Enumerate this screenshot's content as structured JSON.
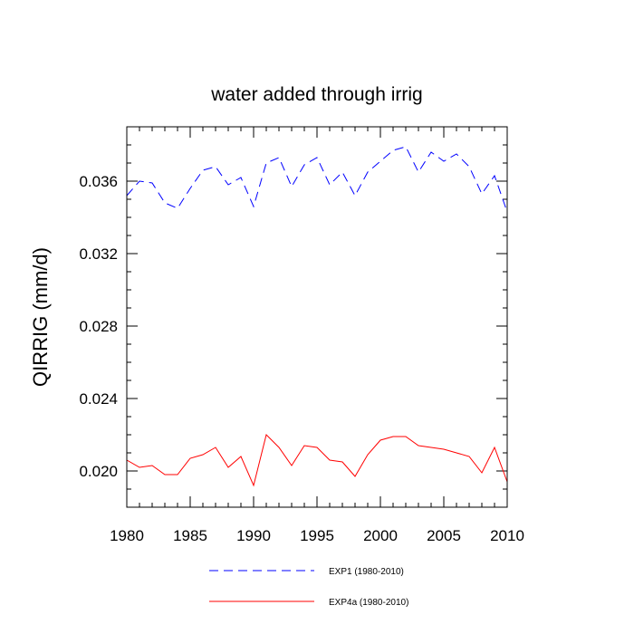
{
  "chart_data": {
    "type": "line",
    "title": "water added through irrig",
    "xlabel": "",
    "ylabel": "QIRRIG  (mm/d)",
    "xlim": [
      1980,
      2010
    ],
    "ylim": [
      0.018,
      0.039
    ],
    "x_ticks": [
      1980,
      1985,
      1990,
      1995,
      2000,
      2005,
      2010
    ],
    "y_ticks": [
      0.02,
      0.024,
      0.028,
      0.032,
      0.036
    ],
    "y_tick_labels": [
      "0.020",
      "0.024",
      "0.028",
      "0.032",
      "0.036"
    ],
    "grid": false,
    "legend_position": "bottom",
    "x": [
      1980,
      1981,
      1982,
      1983,
      1984,
      1985,
      1986,
      1987,
      1988,
      1989,
      1990,
      1991,
      1992,
      1993,
      1994,
      1995,
      1996,
      1997,
      1998,
      1999,
      2000,
      2001,
      2002,
      2003,
      2004,
      2005,
      2006,
      2007,
      2008,
      2009,
      2010
    ],
    "series": [
      {
        "name": "EXP1 (1980-2010)",
        "color": "#0000ff",
        "dash": "dashed",
        "values": [
          0.0352,
          0.036,
          0.0359,
          0.0348,
          0.0345,
          0.0356,
          0.0366,
          0.0368,
          0.0358,
          0.0362,
          0.0346,
          0.037,
          0.0373,
          0.0357,
          0.0369,
          0.0373,
          0.0358,
          0.0365,
          0.0352,
          0.0365,
          0.0371,
          0.0377,
          0.0379,
          0.0365,
          0.0376,
          0.0371,
          0.0375,
          0.0368,
          0.0353,
          0.0363,
          0.0343
        ]
      },
      {
        "name": "EXP4a (1980-2010)",
        "color": "#ff0000",
        "dash": "solid",
        "values": [
          0.0206,
          0.0202,
          0.0203,
          0.0198,
          0.0198,
          0.0207,
          0.0209,
          0.0213,
          0.0202,
          0.0208,
          0.0192,
          0.022,
          0.0213,
          0.0203,
          0.0214,
          0.0213,
          0.0206,
          0.0205,
          0.0197,
          0.0209,
          0.0217,
          0.0219,
          0.0219,
          0.0214,
          0.0213,
          0.0212,
          0.021,
          0.0208,
          0.0199,
          0.0213,
          0.0194
        ]
      }
    ]
  }
}
